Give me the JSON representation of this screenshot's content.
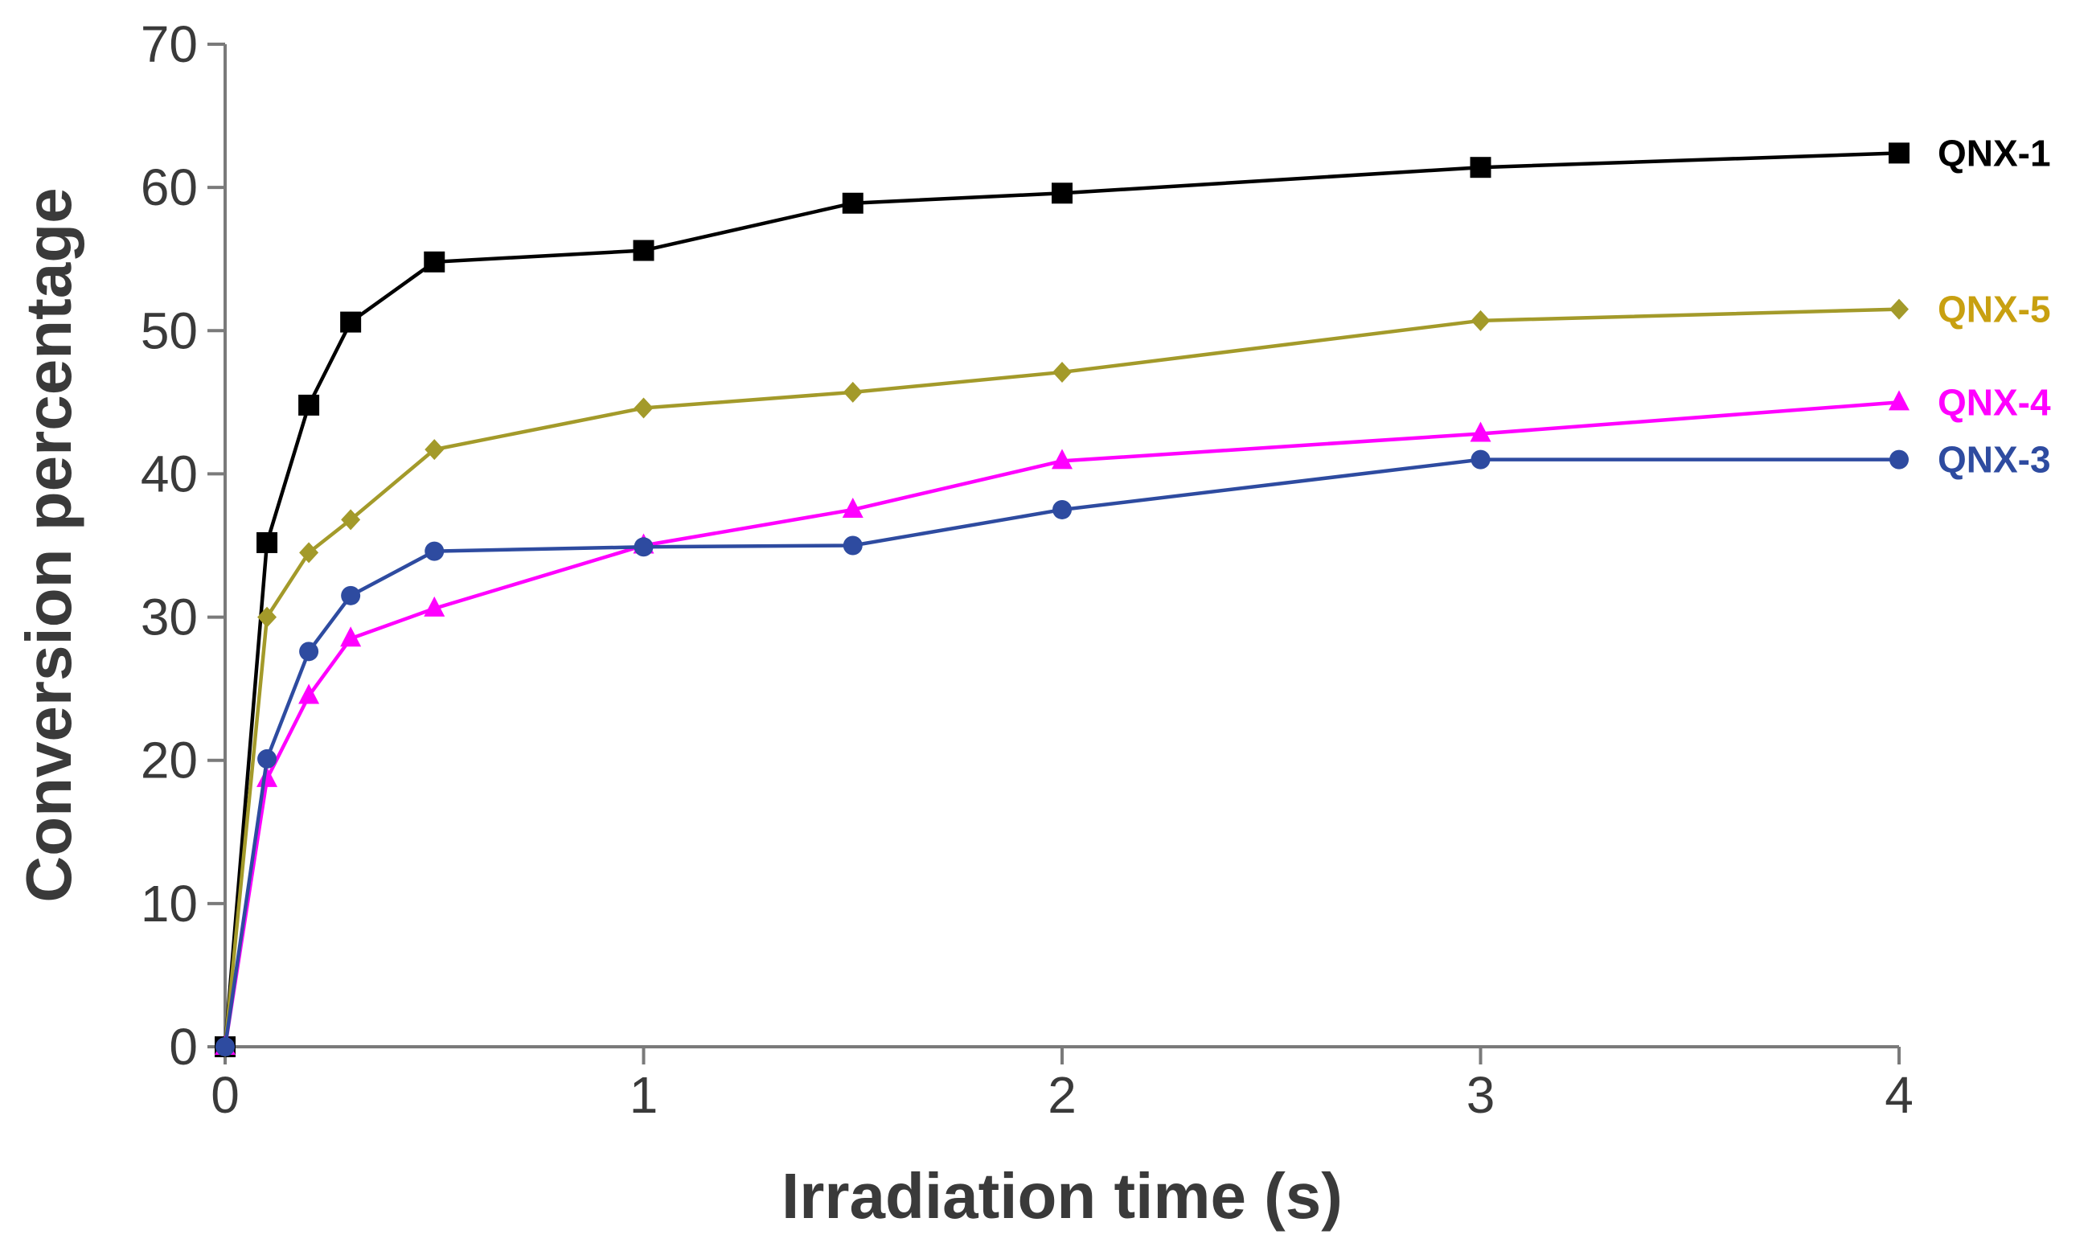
{
  "chart_data": {
    "type": "line",
    "title": "",
    "xlabel": "Irradiation time (s)",
    "ylabel": "Conversion percentage",
    "xlim": [
      0,
      4
    ],
    "ylim": [
      0,
      70
    ],
    "xticks": [
      "0",
      "1",
      "2",
      "3",
      "4"
    ],
    "yticks": [
      "0",
      "10",
      "20",
      "30",
      "40",
      "50",
      "60",
      "70"
    ],
    "grid": false,
    "legend": "inline labels at right end of each series",
    "series": [
      {
        "name": "QNX-1",
        "color": "#000000",
        "marker": "square",
        "x": [
          0,
          0.1,
          0.2,
          0.3,
          0.5,
          1,
          1.5,
          2,
          3,
          4
        ],
        "values": [
          0,
          35.2,
          44.8,
          50.6,
          54.8,
          55.6,
          58.9,
          59.6,
          61.4,
          62.4
        ]
      },
      {
        "name": "QNX-5",
        "color": "#a39a2a",
        "label_color": "#c8a010",
        "marker": "diamond",
        "x": [
          0,
          0.1,
          0.2,
          0.3,
          0.5,
          1,
          1.5,
          2,
          3,
          4
        ],
        "values": [
          0,
          30.0,
          34.5,
          36.8,
          41.7,
          44.6,
          45.7,
          47.1,
          50.7,
          51.5
        ]
      },
      {
        "name": "QNX-4",
        "color": "#ff00ff",
        "marker": "triangle",
        "x": [
          0,
          0.1,
          0.2,
          0.3,
          0.5,
          1,
          1.5,
          2,
          3,
          4
        ],
        "values": [
          0,
          18.7,
          24.5,
          28.5,
          30.6,
          35.0,
          37.5,
          40.9,
          42.8,
          45.0
        ]
      },
      {
        "name": "QNX-3",
        "color": "#2e4ba0",
        "marker": "circle",
        "x": [
          0,
          0.1,
          0.2,
          0.3,
          0.5,
          1,
          1.5,
          2,
          3,
          4
        ],
        "values": [
          0,
          20.1,
          27.6,
          31.5,
          34.6,
          34.9,
          35.0,
          37.5,
          41.0,
          41.0
        ]
      }
    ]
  }
}
